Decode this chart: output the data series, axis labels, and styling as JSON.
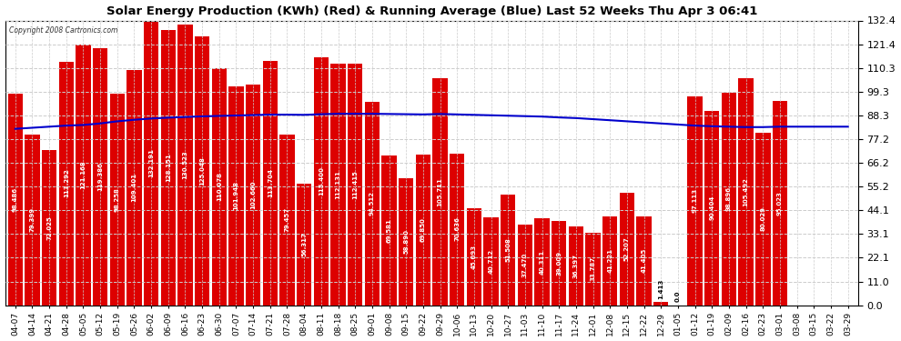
{
  "title": "Solar Energy Production (KWh) (Red) & Running Average (Blue) Last 52 Weeks Thu Apr 3 06:41",
  "copyright": "Copyright 2008 Cartronics.com",
  "bar_color": "#dd0000",
  "line_color": "#0000cc",
  "bg_color": "#ffffff",
  "grid_color": "#cccccc",
  "text_color": "#000000",
  "ylim": [
    0.0,
    132.4
  ],
  "yticks": [
    0.0,
    11.0,
    22.1,
    33.1,
    44.1,
    55.2,
    66.2,
    77.2,
    88.3,
    99.3,
    110.3,
    121.4,
    132.4
  ],
  "categories": [
    "04-07",
    "04-14",
    "04-21",
    "04-28",
    "05-05",
    "05-12",
    "05-19",
    "05-26",
    "06-02",
    "06-09",
    "06-16",
    "06-23",
    "06-30",
    "07-07",
    "07-14",
    "07-21",
    "07-28",
    "08-04",
    "08-11",
    "08-18",
    "08-25",
    "09-01",
    "09-08",
    "09-15",
    "09-22",
    "09-29",
    "10-06",
    "10-13",
    "10-20",
    "10-27",
    "11-03",
    "11-10",
    "11-17",
    "11-24",
    "12-01",
    "12-08",
    "12-15",
    "12-22",
    "12-29",
    "01-05",
    "01-12",
    "01-19",
    "02-09",
    "02-16",
    "02-23",
    "03-01",
    "03-08",
    "03-15",
    "03-22",
    "03-29"
  ],
  "values": [
    98.486,
    79.399,
    72.025,
    113.292,
    121.168,
    119.386,
    98.258,
    109.401,
    132.191,
    128.151,
    130.523,
    125.048,
    110.078,
    101.948,
    102.66,
    113.704,
    79.457,
    56.317,
    115.4,
    112.131,
    112.415,
    94.512,
    69.581,
    58.89,
    69.85,
    105.711,
    70.636,
    45.093,
    40.712,
    51.508,
    37.47,
    40.311,
    39.009,
    36.397,
    33.787,
    41.221,
    52.207,
    41.405,
    1.413,
    0.0,
    97.113,
    90.404,
    98.896,
    105.492,
    80.029,
    95.023,
    0.0,
    0.0,
    0.0,
    0.0
  ],
  "value_labels": [
    "98.486",
    "79.399",
    "72.025",
    "113.292",
    "121.168",
    "119.386",
    "98.258",
    "109.401",
    "132.191",
    "128.151",
    "130.523",
    "125.048",
    "110.078",
    "101.948",
    "102.660",
    "113.704",
    "79.457",
    "56.317",
    "115.400",
    "112.131",
    "112.415",
    "94.512",
    "69.581",
    "58.890",
    "69.850",
    "105.711",
    "70.636",
    "45.093",
    "40.712",
    "51.508",
    "37.470",
    "40.311",
    "39.009",
    "36.397",
    "33.787",
    "41.221",
    "52.207",
    "41.405",
    "1.413",
    "0.0",
    "97.113",
    "90.404",
    "98.896",
    "105.492",
    "80.029",
    "95.023",
    "",
    "",
    "",
    ""
  ],
  "avg_values": [
    82.0,
    82.5,
    83.0,
    83.5,
    83.8,
    84.5,
    85.5,
    86.2,
    86.8,
    87.2,
    87.5,
    87.8,
    88.0,
    88.2,
    88.4,
    88.6,
    88.6,
    88.5,
    88.8,
    89.0,
    89.0,
    89.0,
    88.9,
    88.8,
    88.7,
    88.9,
    88.7,
    88.5,
    88.3,
    88.1,
    87.9,
    87.7,
    87.3,
    87.0,
    86.5,
    86.0,
    85.5,
    85.0,
    84.5,
    84.0,
    83.5,
    83.2,
    83.0,
    82.8,
    82.8,
    83.0,
    83.0,
    83.0,
    83.0,
    83.0
  ]
}
